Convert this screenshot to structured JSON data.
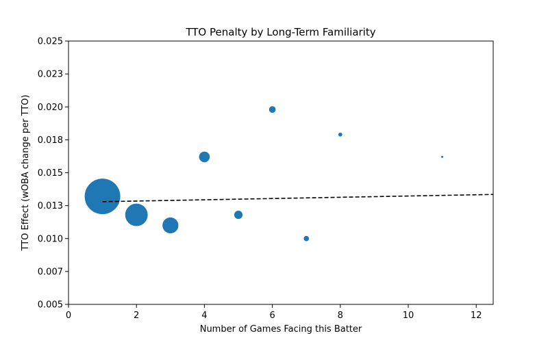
{
  "chart_data": {
    "type": "scatter",
    "title": "TTO Penalty by Long-Term Familiarity",
    "xlabel": "Number of Games Facing this Batter",
    "ylabel": "TTO Effect (wOBA change per TTO)",
    "xlim": [
      0,
      12.5
    ],
    "ylim": [
      0.005,
      0.025
    ],
    "x_ticks": [
      0,
      2,
      4,
      6,
      8,
      10,
      12
    ],
    "x_tick_labels": [
      "0",
      "2",
      "4",
      "6",
      "8",
      "10",
      "12"
    ],
    "y_ticks": [
      0.005,
      0.0075,
      0.01,
      0.0125,
      0.015,
      0.0175,
      0.02,
      0.0225,
      0.025
    ],
    "y_tick_labels": [
      "0.005",
      "0.007",
      "0.010",
      "0.013",
      "0.015",
      "0.018",
      "0.020",
      "0.023",
      "0.025"
    ],
    "grid": false,
    "marker_color": "#1f77b4",
    "trend_color": "#000000",
    "points": [
      {
        "x": 1,
        "y": 0.0132,
        "size": 1.0
      },
      {
        "x": 2,
        "y": 0.0118,
        "size": 0.4
      },
      {
        "x": 3,
        "y": 0.011,
        "size": 0.2
      },
      {
        "x": 4,
        "y": 0.0162,
        "size": 0.09
      },
      {
        "x": 5,
        "y": 0.0118,
        "size": 0.055
      },
      {
        "x": 6,
        "y": 0.0198,
        "size": 0.035
      },
      {
        "x": 7,
        "y": 0.01,
        "size": 0.022
      },
      {
        "x": 8,
        "y": 0.0179,
        "size": 0.012
      },
      {
        "x": 11,
        "y": 0.0162,
        "size": 0.002
      }
    ],
    "trend_line": {
      "style": "dashed",
      "x": [
        1,
        12.5
      ],
      "y": [
        0.0128,
        0.01335
      ]
    }
  }
}
